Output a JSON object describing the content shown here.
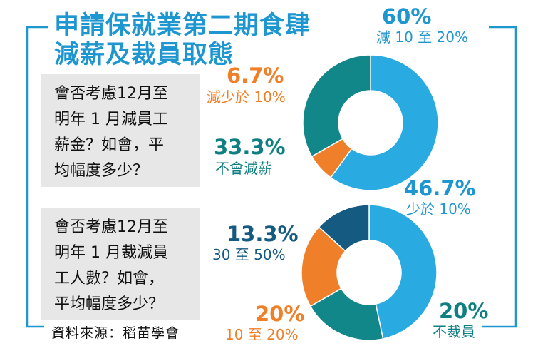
{
  "title": {
    "line1": "申請保就業第二期食肆",
    "line2": "減薪及裁員取態"
  },
  "question1": {
    "line1": "會否考慮12月至",
    "line2": "明年 1 月減員工",
    "line3": "薪金？如會，平",
    "line4": "均幅度多少？"
  },
  "question2": {
    "line1": "會否考慮12月至",
    "line2": "明年 1 月裁減員",
    "line3": "工人數？如會，",
    "line4": "平均幅度多少？"
  },
  "source": "資料來源：稻苗學會",
  "colors": {
    "frame": "#1e96cf",
    "sky": "#29abe2",
    "orange": "#f07f2a",
    "teal": "#12878a",
    "navy": "#155a80",
    "labelBlue": "#1e96cf",
    "labelTeal": "#0f7f82",
    "labelNavy": "#155a80"
  },
  "chart_data": [
    {
      "type": "pie",
      "categories": [
        "減 10 至 20%",
        "減少於 10%",
        "不會減薪"
      ],
      "values": [
        60,
        6.7,
        33.3
      ],
      "value_labels": [
        "60%",
        "6.7%",
        "33.3%"
      ],
      "colors": [
        "#29abe2",
        "#f07f2a",
        "#12878a"
      ],
      "donut": true
    },
    {
      "type": "pie",
      "categories": [
        "少於 10%",
        "不裁員",
        "10 至 20%",
        "30 至 50%"
      ],
      "values": [
        46.7,
        20,
        20,
        13.3
      ],
      "value_labels": [
        "46.7%",
        "20%",
        "20%",
        "13.3%"
      ],
      "colors": [
        "#29abe2",
        "#12878a",
        "#f07f2a",
        "#155a80"
      ],
      "donut": true
    }
  ]
}
